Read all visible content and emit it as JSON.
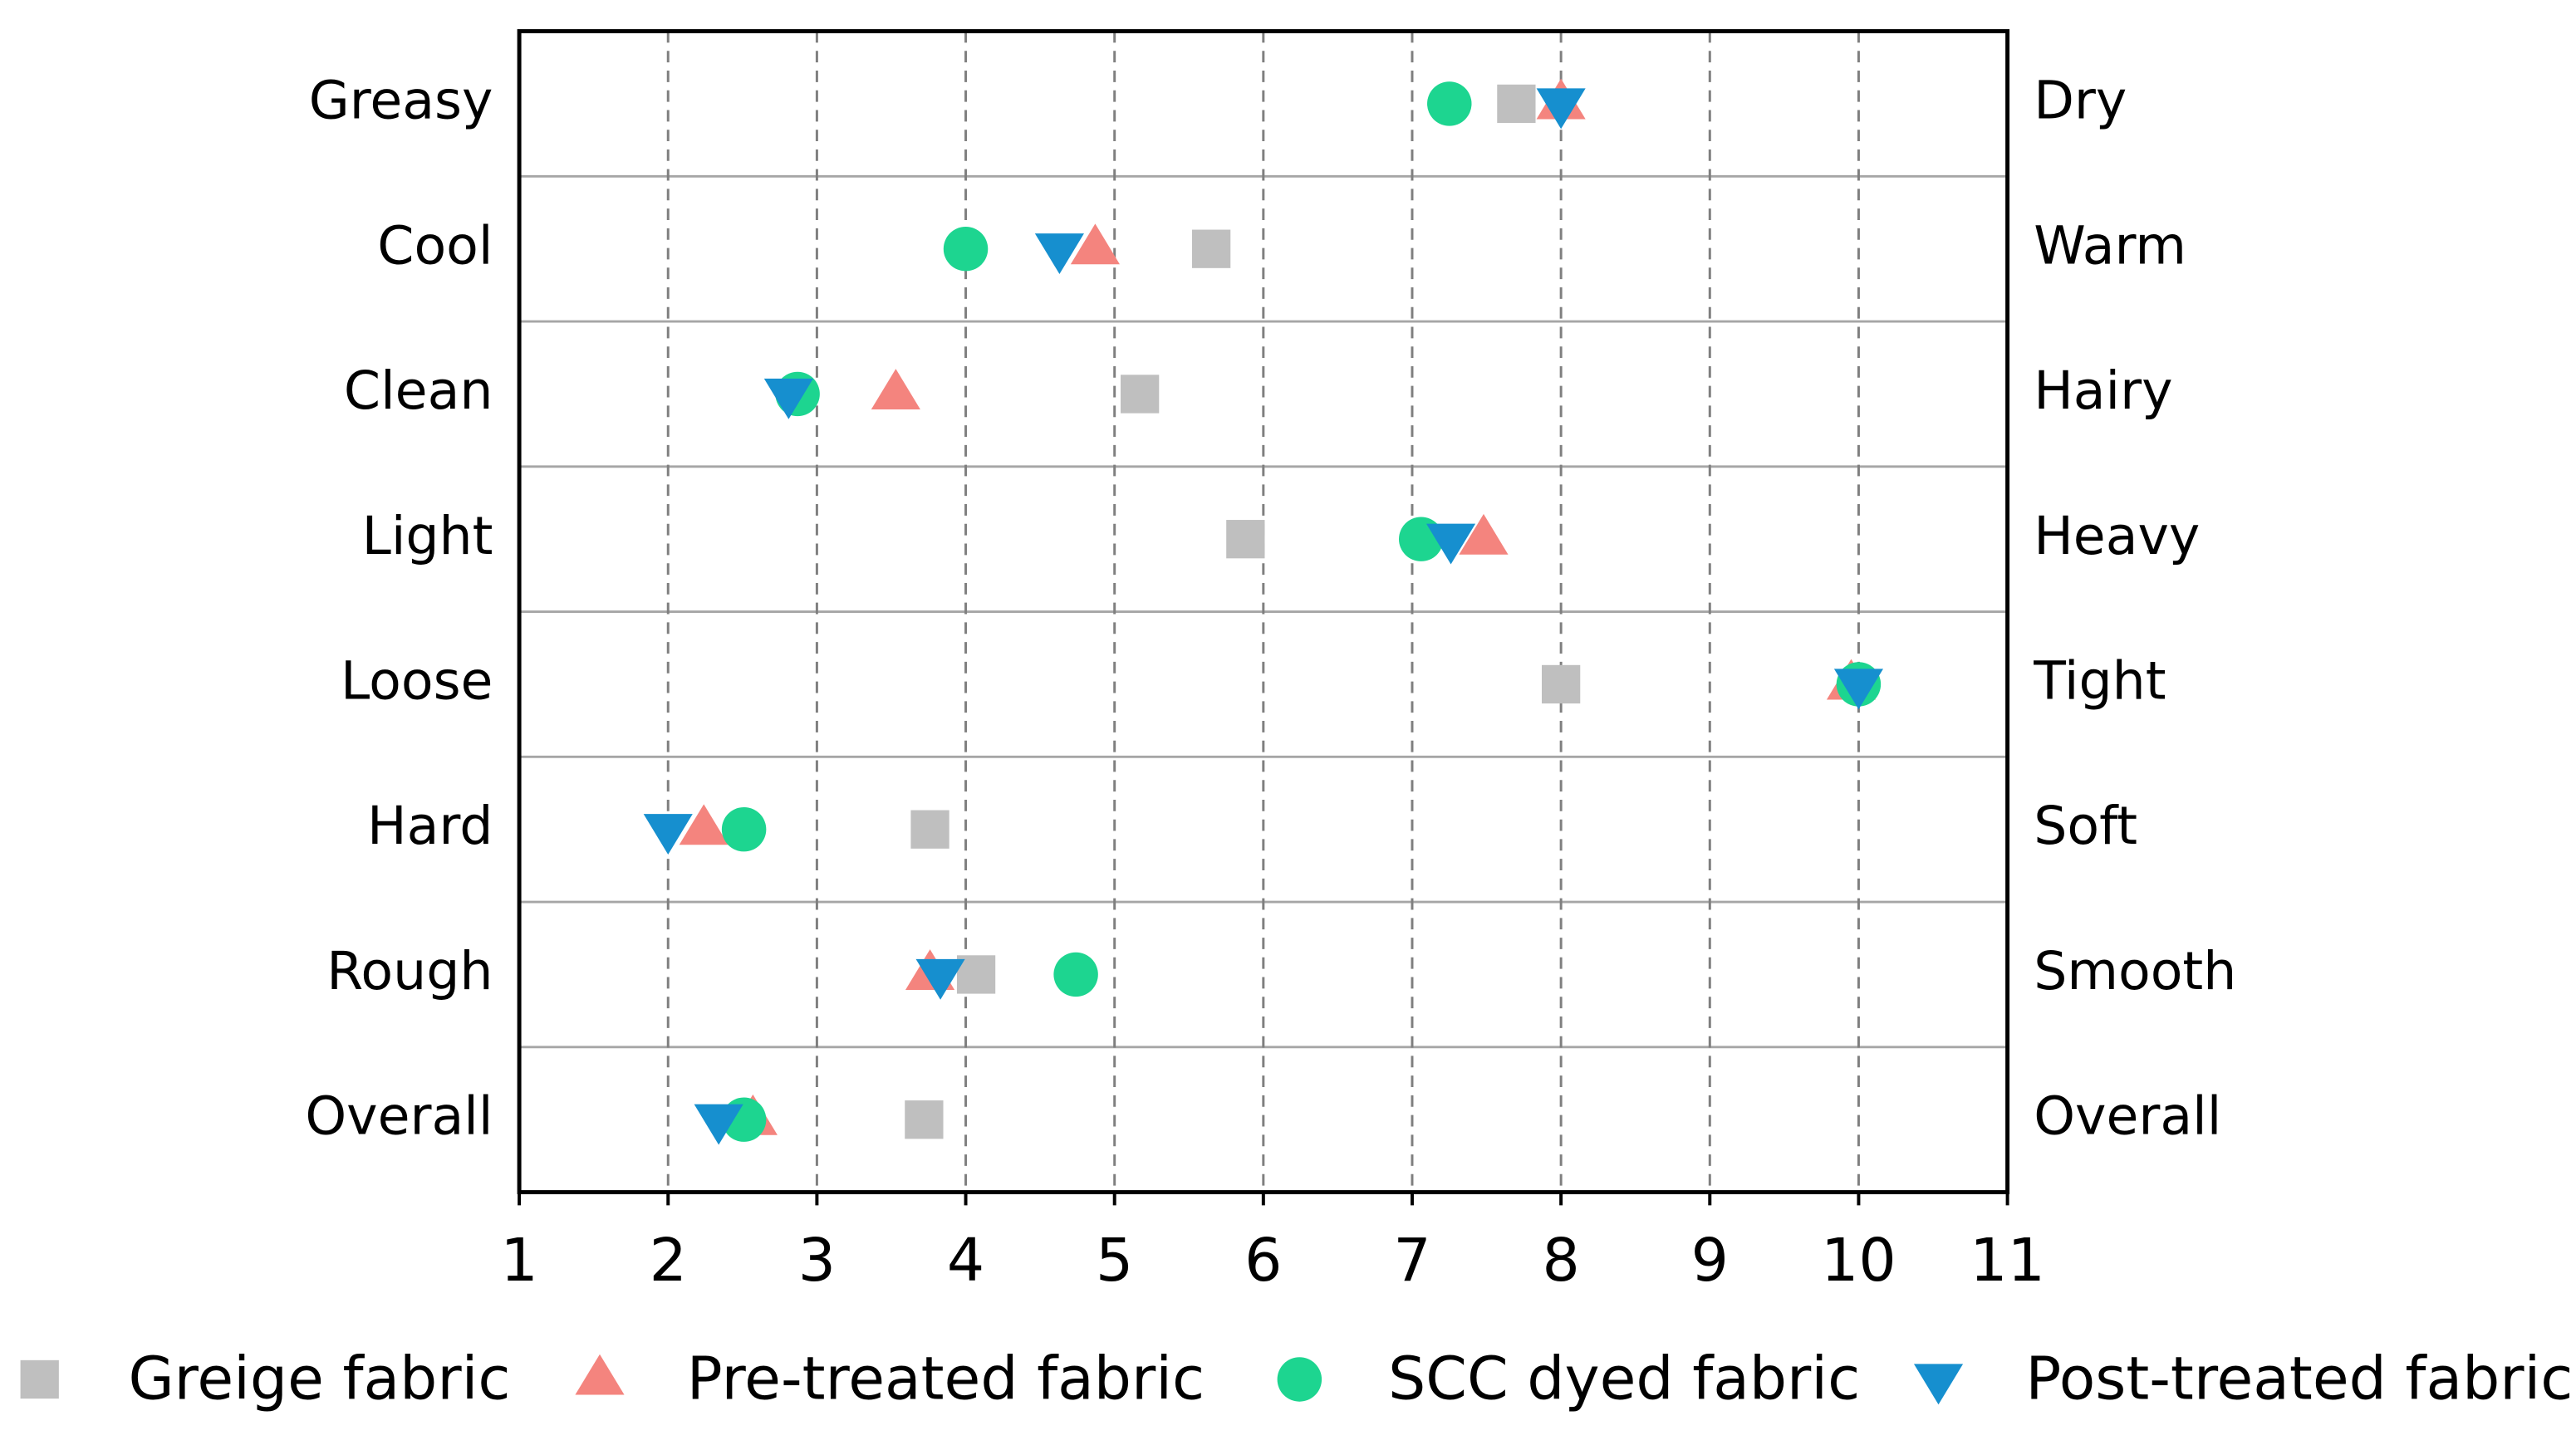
{
  "chart_data": {
    "type": "dot",
    "categories": [
      "Greasy",
      "Cool",
      "Clean",
      "Light",
      "Loose",
      "Hard",
      "Rough",
      "Overall"
    ],
    "right_labels": [
      "Dry",
      "Warm",
      "Hairy",
      "Heavy",
      "Tight",
      "Soft",
      "Smooth",
      "Overall"
    ],
    "series": [
      {
        "name": "Greige fabric",
        "color": "#bfbfbf",
        "marker": "square",
        "values": [
          7.7,
          5.65,
          5.17,
          5.88,
          8.0,
          3.76,
          4.07,
          3.72
        ]
      },
      {
        "name": "Pre-treated fabric",
        "color": "#f4847e",
        "marker": "triangle-up",
        "values": [
          8.0,
          4.87,
          3.53,
          7.48,
          9.95,
          2.24,
          3.76,
          2.57
        ]
      },
      {
        "name": "SCC dyed fabric",
        "color": "#1dd590",
        "marker": "circle",
        "values": [
          7.25,
          4.0,
          2.87,
          7.06,
          10.0,
          2.51,
          4.74,
          2.51
        ]
      },
      {
        "name": "Post-treated fabric",
        "color": "#168fcf",
        "marker": "triangle-down",
        "values": [
          8.0,
          4.63,
          2.81,
          7.26,
          10.0,
          2.0,
          3.83,
          2.34
        ]
      }
    ],
    "xlim": [
      1,
      11
    ],
    "xticks": [
      1,
      2,
      3,
      4,
      5,
      6,
      7,
      8,
      9,
      10,
      11
    ],
    "grid": true
  }
}
